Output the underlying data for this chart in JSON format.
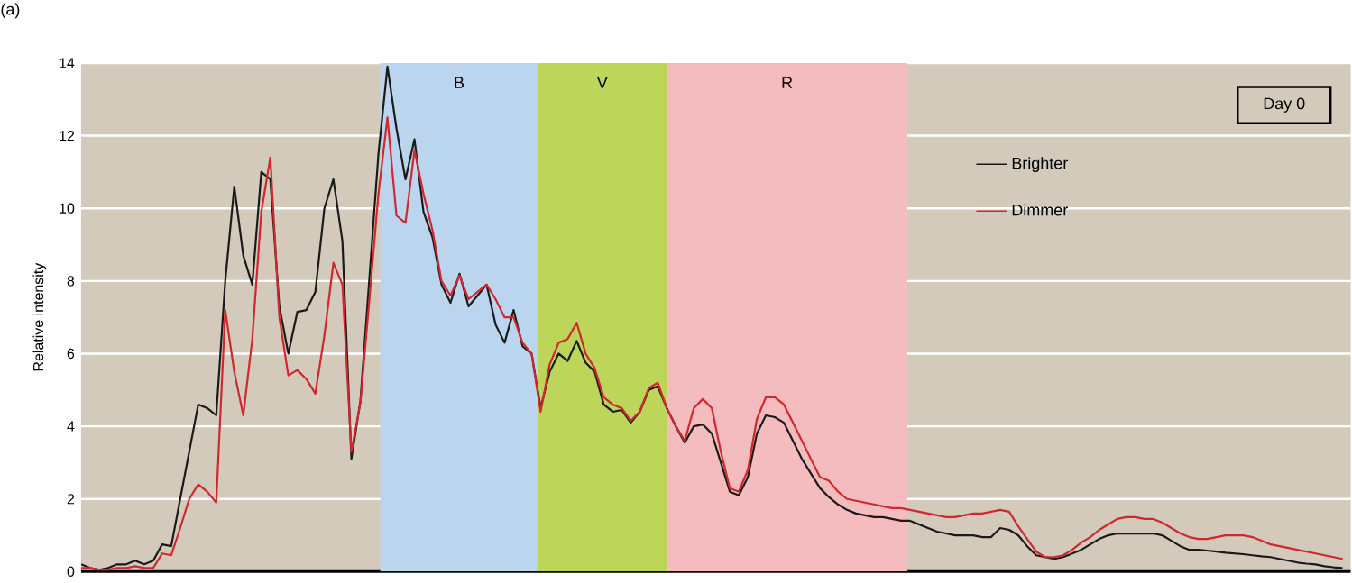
{
  "chart_data": {
    "type": "line",
    "ylabel": "Relative intensity",
    "ylim": [
      0,
      14
    ],
    "yticks": [
      0,
      2,
      4,
      6,
      8,
      10,
      12,
      14
    ],
    "grid": "y",
    "legend": "top right",
    "annotations": [
      "(a)",
      "Day 0",
      "B",
      "V",
      "R"
    ],
    "categories": [
      null,
      null,
      null,
      null,
      null,
      null,
      null,
      null,
      null,
      null,
      null,
      null,
      null,
      null,
      null,
      null,
      null,
      null,
      null,
      null,
      null,
      null,
      null,
      null,
      null,
      null,
      null,
      null,
      null,
      null,
      null,
      null,
      null,
      null,
      null,
      null,
      null,
      null,
      null,
      null,
      null,
      null,
      null,
      null,
      null,
      null,
      null,
      null,
      null,
      null,
      null,
      null,
      null,
      null,
      null,
      null,
      null,
      null,
      null,
      null,
      null,
      null,
      null,
      null,
      null,
      null,
      null,
      null,
      null,
      null,
      null,
      null,
      null,
      null,
      null,
      null,
      null,
      null,
      null,
      null,
      null,
      null,
      null,
      null,
      null,
      null,
      null,
      null,
      null,
      null,
      null,
      null,
      null,
      null,
      null,
      null,
      null,
      null,
      null,
      null,
      null,
      null,
      null,
      null,
      null,
      null,
      null,
      null,
      null,
      null,
      null,
      null,
      null,
      null,
      null,
      null,
      null,
      null,
      null,
      null,
      null,
      null,
      null,
      null,
      null,
      null,
      null,
      null,
      null,
      null,
      null,
      null,
      null,
      null,
      null,
      null,
      null,
      null,
      null,
      null,
      null
    ],
    "series": [
      {
        "name": "Brighter",
        "color": "#1a1a1a",
        "values": [
          0.2,
          0.1,
          0.05,
          0.1,
          0.2,
          0.2,
          0.3,
          0.2,
          0.3,
          0.75,
          0.7,
          2.0,
          3.3,
          4.6,
          4.5,
          4.3,
          8.0,
          10.6,
          8.7,
          7.9,
          11.0,
          10.8,
          7.3,
          6.0,
          7.15,
          7.2,
          7.7,
          10.0,
          10.8,
          9.1,
          3.1,
          4.7,
          8.1,
          11.5,
          13.9,
          12.2,
          10.8,
          11.9,
          9.9,
          9.2,
          7.9,
          7.4,
          8.2,
          7.3,
          7.6,
          7.9,
          6.8,
          6.3,
          7.2,
          6.2,
          6.0,
          4.5,
          5.5,
          6.0,
          5.8,
          6.35,
          5.75,
          5.5,
          4.6,
          4.4,
          4.45,
          4.1,
          4.4,
          5.0,
          5.1,
          4.5,
          4.0,
          3.55,
          4.0,
          4.05,
          3.8,
          3.0,
          2.2,
          2.1,
          2.6,
          3.8,
          4.3,
          4.25,
          4.1,
          3.6,
          3.1,
          2.7,
          2.3,
          2.05,
          1.85,
          1.7,
          1.6,
          1.55,
          1.5,
          1.5,
          1.45,
          1.4,
          1.4,
          1.3,
          1.2,
          1.1,
          1.05,
          1.0,
          1.0,
          1.0,
          0.95,
          0.95,
          1.2,
          1.15,
          1.0,
          0.7,
          0.45,
          0.4,
          0.35,
          0.4,
          0.5,
          0.6,
          0.75,
          0.9,
          1.0,
          1.05,
          1.05,
          1.05,
          1.05,
          1.05,
          1.0,
          0.85,
          0.7,
          0.6,
          0.6,
          0.58,
          0.55,
          0.52,
          0.5,
          0.48,
          0.45,
          0.42,
          0.4,
          0.35,
          0.3,
          0.25,
          0.22,
          0.2,
          0.15,
          0.12,
          0.1
        ]
      },
      {
        "name": "Dimmer",
        "color": "#d0282e",
        "values": [
          0.1,
          0.1,
          0.05,
          0.05,
          0.1,
          0.1,
          0.15,
          0.1,
          0.1,
          0.5,
          0.45,
          1.2,
          2.0,
          2.4,
          2.2,
          1.9,
          7.2,
          5.5,
          4.3,
          6.4,
          9.9,
          11.4,
          7.0,
          5.4,
          5.55,
          5.3,
          4.9,
          6.5,
          8.5,
          7.9,
          3.3,
          4.65,
          7.5,
          10.4,
          12.5,
          9.8,
          9.6,
          11.6,
          10.4,
          9.4,
          8.0,
          7.6,
          8.15,
          7.5,
          7.7,
          7.9,
          7.5,
          7.0,
          7.0,
          6.3,
          6.0,
          4.4,
          5.7,
          6.3,
          6.4,
          6.85,
          6.0,
          5.6,
          4.8,
          4.6,
          4.5,
          4.15,
          4.4,
          5.05,
          5.2,
          4.5,
          4.0,
          3.6,
          4.5,
          4.75,
          4.5,
          3.3,
          2.3,
          2.2,
          2.8,
          4.2,
          4.8,
          4.8,
          4.6,
          4.1,
          3.6,
          3.1,
          2.6,
          2.5,
          2.2,
          2.0,
          1.95,
          1.9,
          1.85,
          1.8,
          1.75,
          1.75,
          1.7,
          1.65,
          1.6,
          1.55,
          1.5,
          1.5,
          1.55,
          1.6,
          1.6,
          1.65,
          1.7,
          1.65,
          1.25,
          0.9,
          0.55,
          0.4,
          0.4,
          0.45,
          0.6,
          0.8,
          0.95,
          1.15,
          1.3,
          1.45,
          1.5,
          1.5,
          1.45,
          1.45,
          1.35,
          1.2,
          1.05,
          0.95,
          0.9,
          0.9,
          0.95,
          1.0,
          1.0,
          1.0,
          0.95,
          0.85,
          0.75,
          0.7,
          0.65,
          0.6,
          0.55,
          0.5,
          0.45,
          0.4,
          0.35
        ]
      }
    ]
  }
}
